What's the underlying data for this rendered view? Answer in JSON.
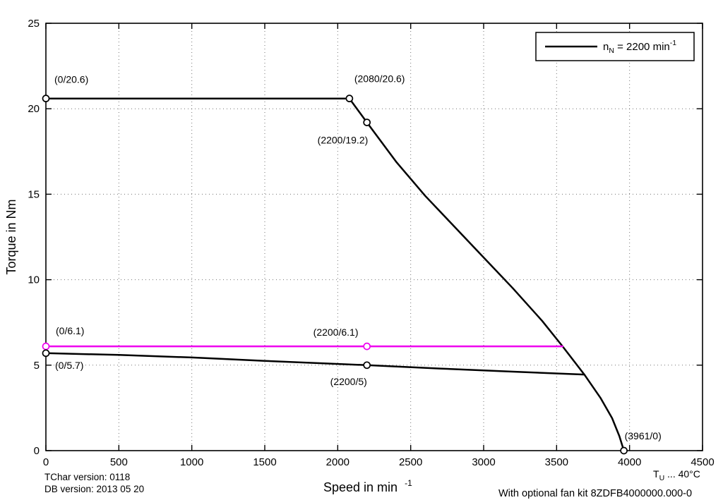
{
  "chart_data": {
    "type": "line",
    "title": "",
    "xlabel_main": "Speed in min",
    "xlabel_sup": "-1",
    "ylabel": "Torque in Nm",
    "xlim": [
      0,
      4500
    ],
    "ylim": [
      0,
      25
    ],
    "xticks": [
      0,
      500,
      1000,
      1500,
      2000,
      2500,
      3000,
      3500,
      4000,
      4500
    ],
    "yticks": [
      0,
      5,
      10,
      15,
      20,
      25
    ],
    "grid": "dotted",
    "legend": {
      "position": "top-right",
      "line_color": "#000000",
      "entry_pre": "n",
      "entry_sub": "N",
      "entry_mid": " = 2200 min",
      "entry_sup": "-1"
    },
    "series": [
      {
        "name": "peak-torque-curve",
        "color": "#000000",
        "points": [
          [
            0,
            20.6
          ],
          [
            2080,
            20.6
          ],
          [
            2200,
            19.2
          ],
          [
            2400,
            16.9
          ],
          [
            2600,
            14.9
          ],
          [
            2800,
            13.1
          ],
          [
            3000,
            11.3
          ],
          [
            3200,
            9.5
          ],
          [
            3400,
            7.6
          ],
          [
            3541,
            6.1
          ],
          [
            3690,
            4.45
          ],
          [
            3800,
            3.1
          ],
          [
            3880,
            1.9
          ],
          [
            3930,
            0.85
          ],
          [
            3961,
            0
          ]
        ]
      },
      {
        "name": "continuous-torque-curve",
        "color": "#000000",
        "points": [
          [
            0,
            5.7
          ],
          [
            500,
            5.6
          ],
          [
            1000,
            5.45
          ],
          [
            1500,
            5.25
          ],
          [
            2200,
            5.0
          ],
          [
            2700,
            4.8
          ],
          [
            3200,
            4.62
          ],
          [
            3690,
            4.45
          ]
        ]
      },
      {
        "name": "fan-kit-torque-line",
        "color": "#ee00ee",
        "points": [
          [
            0,
            6.1
          ],
          [
            2200,
            6.1
          ],
          [
            3541,
            6.1
          ]
        ]
      }
    ],
    "marked_points": [
      {
        "x": 0,
        "y": 20.6,
        "color": "#000000"
      },
      {
        "x": 2080,
        "y": 20.6,
        "color": "#000000"
      },
      {
        "x": 2200,
        "y": 19.2,
        "color": "#000000"
      },
      {
        "x": 0,
        "y": 6.1,
        "color": "#ee00ee"
      },
      {
        "x": 2200,
        "y": 6.1,
        "color": "#ee00ee"
      },
      {
        "x": 0,
        "y": 5.7,
        "color": "#000000"
      },
      {
        "x": 2200,
        "y": 5,
        "color": "#000000"
      },
      {
        "x": 3961,
        "y": 0,
        "color": "#000000"
      }
    ],
    "point_labels": [
      {
        "text": "(0/20.6)",
        "x": 0,
        "y": 20.6,
        "color": "#000000"
      },
      {
        "text": "(2080/20.6)",
        "x": 2080,
        "y": 20.6,
        "color": "#000000"
      },
      {
        "text": "(2200/19.2)",
        "x": 2200,
        "y": 19.2,
        "color": "#000000"
      },
      {
        "text": "(0/6.1)",
        "x": 0,
        "y": 6.1,
        "color": "#ee00ee"
      },
      {
        "text": "(2200/6.1)",
        "x": 2200,
        "y": 6.1,
        "color": "#ee00ee"
      },
      {
        "text": "(0/5.7)",
        "x": 0,
        "y": 5.7,
        "color": "#000000"
      },
      {
        "text": "(2200/5)",
        "x": 2200,
        "y": 5,
        "color": "#000000"
      },
      {
        "text": "(3961/0)",
        "x": 3961,
        "y": 0,
        "color": "#000000"
      }
    ]
  },
  "footer": {
    "tchar_version": "TChar version: 0118",
    "db_version": "DB version: 2013 05 20",
    "ambient_pre": "T",
    "ambient_sub": "U",
    "ambient_post": " ... 40°C",
    "fan_note": "With optional fan kit 8ZDFB4000000.000-0",
    "fan_note_color": "#ee00ee"
  }
}
